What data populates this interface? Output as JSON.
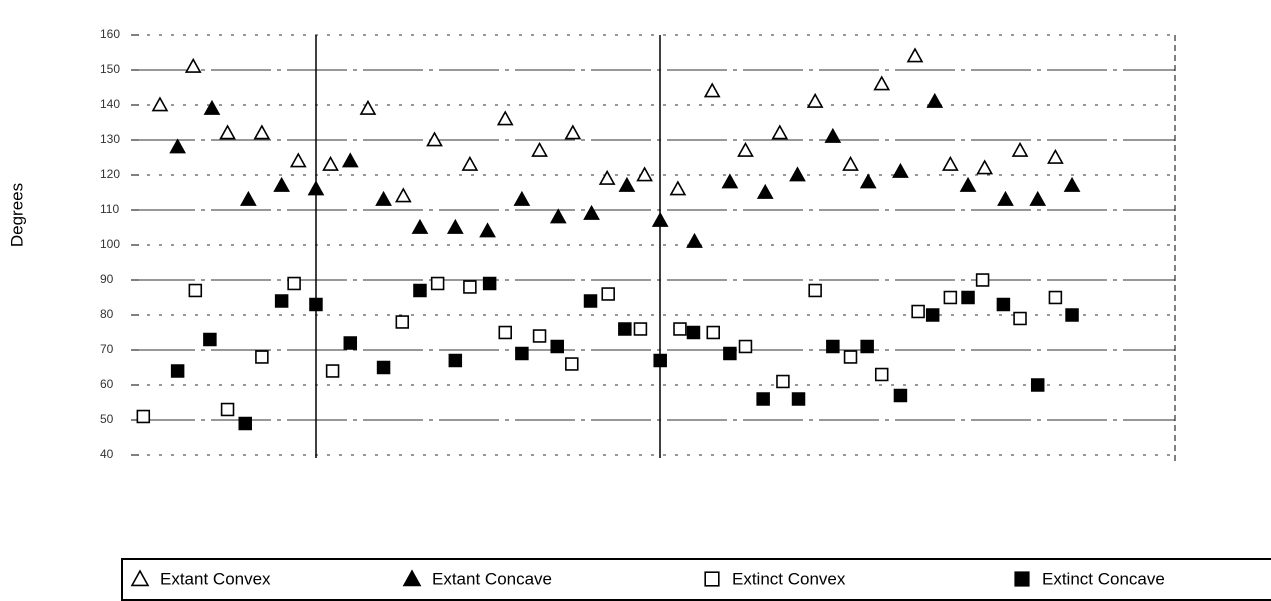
{
  "chart_data": {
    "type": "scatter",
    "y_label": "Degrees",
    "xlim": [
      0,
      100
    ],
    "ylim": [
      40,
      160
    ],
    "yticks": [
      40,
      50,
      60,
      70,
      80,
      90,
      100,
      110,
      120,
      130,
      140,
      150,
      160
    ],
    "grid": true,
    "legend": "bottom",
    "series": [
      {
        "name": "Extant Convex",
        "color": "#000000",
        "marker": "triangle-open",
        "x": [
          2.4,
          5.6,
          8.9,
          12.2,
          15.7,
          18.8,
          22.4,
          25.8,
          28.8,
          32.2,
          35.6,
          38.9,
          42.1,
          45.4,
          49.0,
          52.2,
          55.5,
          58.7,
          62.0,
          65.4,
          68.8,
          71.8,
          75.0,
          78.4,
          81.7,
          85.1,
          88.5
        ],
        "values": [
          140,
          151,
          132,
          132,
          124,
          123,
          139,
          114,
          130,
          123,
          136,
          127,
          132,
          119,
          120,
          116,
          144,
          127,
          132,
          141,
          123,
          146,
          154,
          123,
          122,
          127,
          125
        ]
      },
      {
        "name": "Extant Concave",
        "color": "#000000",
        "marker": "triangle-filled",
        "x": [
          4.1,
          7.4,
          10.9,
          14.1,
          17.4,
          20.7,
          23.9,
          27.4,
          30.8,
          33.9,
          37.2,
          40.7,
          43.9,
          47.3,
          50.5,
          53.8,
          57.2,
          60.6,
          63.7,
          67.1,
          70.5,
          73.6,
          76.9,
          80.1,
          83.7,
          86.8,
          90.1
        ],
        "values": [
          128,
          139,
          113,
          117,
          116,
          124,
          113,
          105,
          105,
          104,
          113,
          108,
          109,
          117,
          107,
          101,
          118,
          115,
          120,
          131,
          118,
          121,
          141,
          117,
          113,
          113,
          117
        ]
      },
      {
        "name": "Extinct Convex",
        "color": "#000000",
        "marker": "square-open",
        "x": [
          0.8,
          5.8,
          8.9,
          12.2,
          15.3,
          19.0,
          25.7,
          29.1,
          32.2,
          35.6,
          38.9,
          42.0,
          45.5,
          48.6,
          52.4,
          55.6,
          58.7,
          62.3,
          65.4,
          68.8,
          71.8,
          75.3,
          78.4,
          81.5,
          85.1,
          88.5
        ],
        "values": [
          51,
          87,
          53,
          68,
          89,
          64,
          78,
          89,
          88,
          75,
          74,
          66,
          86,
          76,
          76,
          75,
          71,
          61,
          87,
          68,
          63,
          81,
          85,
          90,
          79,
          85
        ]
      },
      {
        "name": "Extinct Concave",
        "color": "#000000",
        "marker": "square-filled",
        "x": [
          4.1,
          7.2,
          10.6,
          14.1,
          17.4,
          20.7,
          23.9,
          27.4,
          30.8,
          34.1,
          37.2,
          40.6,
          43.8,
          47.1,
          50.5,
          53.7,
          57.2,
          60.4,
          63.8,
          67.1,
          70.4,
          73.6,
          76.7,
          80.1,
          83.5,
          86.8,
          90.1
        ],
        "values": [
          64,
          73,
          49,
          84,
          83,
          72,
          65,
          87,
          67,
          89,
          69,
          71,
          84,
          76,
          67,
          75,
          69,
          56,
          56,
          71,
          71,
          57,
          80,
          85,
          83,
          60,
          80
        ]
      }
    ]
  }
}
